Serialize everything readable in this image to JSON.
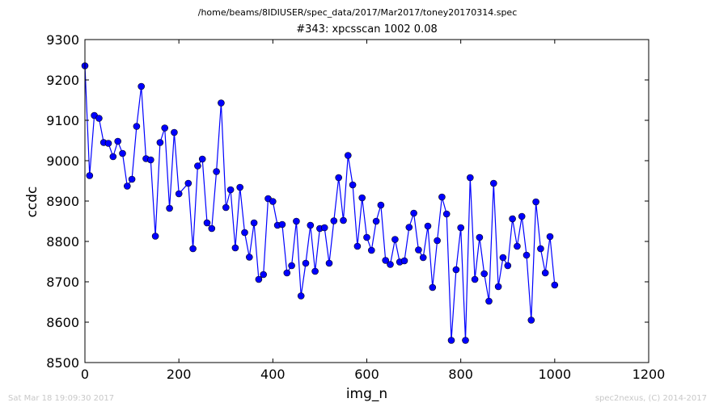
{
  "header": {
    "path": "/home/beams/8IDIUSER/spec_data/2017/Mar2017/toney20170314.spec"
  },
  "footer": {
    "timestamp": "Sat Mar 18 19:09:30 2017",
    "credit": "spec2nexus, (C) 2014-2017"
  },
  "chart_data": {
    "type": "line",
    "title": "#343: xpcsscan 1002 0.08",
    "xlabel": "img_n",
    "ylabel": "ccdc",
    "xlim": [
      0,
      1200
    ],
    "ylim": [
      8500,
      9300
    ],
    "xticks": [
      0,
      200,
      400,
      600,
      800,
      1000,
      1200
    ],
    "yticks": [
      8500,
      8600,
      8700,
      8800,
      8900,
      9000,
      9100,
      9200,
      9300
    ],
    "grid": false,
    "line_color": "#0000ff",
    "marker_color": "#0000ff",
    "marker": "circle",
    "x": [
      0,
      10,
      20,
      30,
      40,
      50,
      60,
      70,
      80,
      90,
      100,
      110,
      120,
      130,
      140,
      150,
      160,
      170,
      180,
      190,
      200,
      220,
      230,
      240,
      250,
      260,
      270,
      280,
      290,
      300,
      310,
      320,
      330,
      340,
      350,
      360,
      370,
      380,
      390,
      400,
      410,
      420,
      430,
      440,
      450,
      460,
      470,
      480,
      490,
      500,
      510,
      520,
      530,
      540,
      550,
      560,
      570,
      580,
      590,
      600,
      610,
      620,
      630,
      640,
      650,
      660,
      670,
      680,
      690,
      700,
      710,
      720,
      730,
      740,
      750,
      760,
      770,
      780,
      790,
      800,
      810,
      820,
      830,
      840,
      850,
      860,
      870,
      880,
      890,
      900,
      910,
      920,
      930,
      940,
      950,
      960,
      970,
      980,
      990,
      1000
    ],
    "y": [
      9235,
      8963,
      9112,
      9105,
      9045,
      9043,
      9010,
      9048,
      9018,
      8937,
      8954,
      9085,
      9184,
      9005,
      9002,
      8813,
      9045,
      9081,
      8882,
      9070,
      8918,
      8944,
      8782,
      8987,
      9004,
      8846,
      8832,
      8973,
      9143,
      8884,
      8928,
      8784,
      8934,
      8822,
      8761,
      8846,
      8706,
      8718,
      8906,
      8899,
      8840,
      8842,
      8722,
      8740,
      8850,
      8665,
      8746,
      8840,
      8726,
      8832,
      8834,
      8746,
      8851,
      8958,
      8852,
      9013,
      8940,
      8788,
      8908,
      8810,
      8778,
      8850,
      8890,
      8753,
      8743,
      8805,
      8749,
      8752,
      8835,
      8870,
      8779,
      8760,
      8838,
      8686,
      8802,
      8910,
      8868,
      8555,
      8730,
      8834,
      8555,
      8958,
      8706,
      8810,
      8720,
      8652,
      8944,
      8688,
      8760,
      8740,
      8856,
      8788,
      8862,
      8766,
      8605,
      8898,
      8782,
      8722,
      8812,
      8692
    ]
  }
}
